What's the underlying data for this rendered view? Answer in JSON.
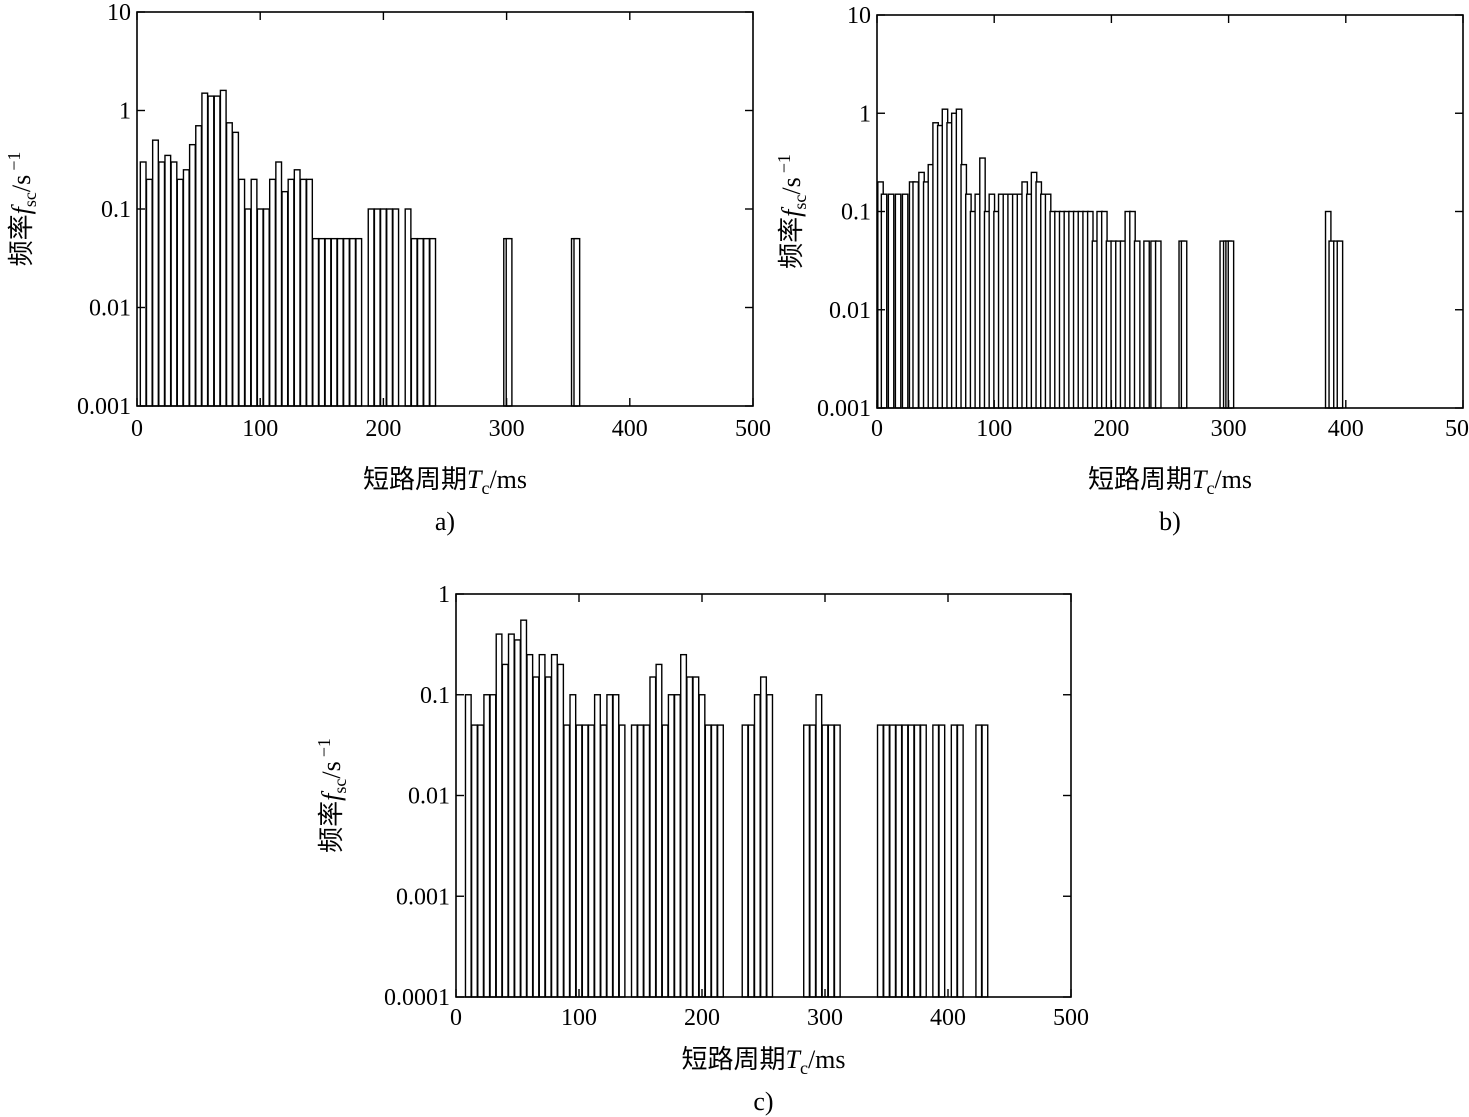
{
  "chart_data": [
    {
      "type": "bar",
      "panel_label": "a)",
      "xlabel": "短路周期",
      "xlabel_symbol": "T",
      "xlabel_sub": "c",
      "xlabel_unit": "/ms",
      "ylabel": "频率",
      "ylabel_symbol": "f",
      "ylabel_sub": "sc",
      "ylabel_unit": "/s",
      "ylabel_exp": "−1",
      "xlim": [
        0,
        500
      ],
      "ylim": [
        0.001,
        10
      ],
      "yscale": "log",
      "grid": false,
      "xticks": [
        "0",
        "100",
        "200",
        "300",
        "400",
        "500"
      ],
      "yticks": [
        "0.001",
        "0.01",
        "0.1",
        "1",
        "10"
      ],
      "x": [
        5,
        10,
        15,
        20,
        25,
        30,
        35,
        40,
        45,
        50,
        55,
        60,
        65,
        70,
        75,
        80,
        85,
        90,
        95,
        100,
        105,
        110,
        115,
        120,
        125,
        130,
        135,
        140,
        145,
        150,
        155,
        160,
        165,
        170,
        175,
        180,
        190,
        195,
        200,
        205,
        210,
        220,
        225,
        230,
        235,
        240,
        300,
        302,
        355,
        357
      ],
      "values": [
        0.3,
        0.2,
        0.5,
        0.3,
        0.35,
        0.3,
        0.2,
        0.25,
        0.45,
        0.7,
        1.5,
        1.4,
        1.4,
        1.6,
        0.75,
        0.6,
        0.2,
        0.1,
        0.2,
        0.1,
        0.1,
        0.2,
        0.3,
        0.15,
        0.2,
        0.25,
        0.2,
        0.2,
        0.05,
        0.05,
        0.05,
        0.05,
        0.05,
        0.05,
        0.05,
        0.05,
        0.1,
        0.1,
        0.1,
        0.1,
        0.1,
        0.1,
        0.05,
        0.05,
        0.05,
        0.05,
        0.05,
        0.05,
        0.05,
        0.05
      ]
    },
    {
      "type": "bar",
      "panel_label": "b)",
      "xlabel": "短路周期",
      "xlabel_symbol": "T",
      "xlabel_sub": "c",
      "xlabel_unit": "/ms",
      "ylabel": "频率",
      "ylabel_symbol": "f",
      "ylabel_sub": "sc",
      "ylabel_unit": "/s",
      "ylabel_exp": "−1",
      "xlim": [
        0,
        500
      ],
      "ylim": [
        0.001,
        10
      ],
      "yscale": "log",
      "grid": false,
      "xticks": [
        "0",
        "100",
        "200",
        "300",
        "400",
        "500"
      ],
      "yticks": [
        "0.001",
        "0.01",
        "0.1",
        "1",
        "10"
      ],
      "x": [
        3,
        6,
        12,
        18,
        24,
        30,
        33,
        38,
        42,
        46,
        50,
        54,
        58,
        62,
        66,
        70,
        74,
        78,
        82,
        86,
        90,
        94,
        98,
        102,
        106,
        110,
        114,
        118,
        122,
        126,
        130,
        134,
        138,
        142,
        146,
        150,
        154,
        158,
        162,
        166,
        170,
        174,
        178,
        182,
        186,
        190,
        194,
        198,
        202,
        206,
        210,
        214,
        218,
        222,
        230,
        236,
        240,
        260,
        262,
        295,
        298,
        300,
        302,
        385,
        388,
        392,
        395
      ],
      "values": [
        0.2,
        0.15,
        0.15,
        0.15,
        0.15,
        0.2,
        0.2,
        0.25,
        0.2,
        0.3,
        0.8,
        0.75,
        1.1,
        0.8,
        1.0,
        1.1,
        0.3,
        0.15,
        0.1,
        0.15,
        0.35,
        0.1,
        0.15,
        0.1,
        0.15,
        0.15,
        0.15,
        0.15,
        0.15,
        0.2,
        0.15,
        0.25,
        0.2,
        0.15,
        0.15,
        0.1,
        0.1,
        0.1,
        0.1,
        0.1,
        0.1,
        0.1,
        0.1,
        0.1,
        0.05,
        0.1,
        0.1,
        0.05,
        0.05,
        0.05,
        0.05,
        0.1,
        0.1,
        0.05,
        0.05,
        0.05,
        0.05,
        0.05,
        0.05,
        0.05,
        0.05,
        0.05,
        0.05,
        0.1,
        0.05,
        0.05,
        0.05
      ]
    },
    {
      "type": "bar",
      "panel_label": "c)",
      "xlabel": "短路周期",
      "xlabel_symbol": "T",
      "xlabel_sub": "c",
      "xlabel_unit": "/ms",
      "ylabel": "频率",
      "ylabel_symbol": "f",
      "ylabel_sub": "sc",
      "ylabel_unit": "/s",
      "ylabel_exp": "−1",
      "xlim": [
        0,
        500
      ],
      "ylim": [
        0.0001,
        1
      ],
      "yscale": "log",
      "grid": false,
      "xticks": [
        "0",
        "100",
        "200",
        "300",
        "400",
        "500"
      ],
      "yticks": [
        "0.0001",
        "0.001",
        "0.01",
        "0.1",
        "1"
      ],
      "x": [
        10,
        15,
        20,
        25,
        30,
        35,
        40,
        45,
        50,
        55,
        60,
        65,
        70,
        75,
        80,
        85,
        90,
        95,
        100,
        105,
        110,
        115,
        120,
        125,
        130,
        135,
        145,
        150,
        155,
        160,
        165,
        170,
        175,
        180,
        185,
        190,
        195,
        200,
        205,
        210,
        215,
        235,
        240,
        245,
        250,
        255,
        285,
        290,
        295,
        300,
        305,
        310,
        345,
        350,
        355,
        360,
        365,
        370,
        375,
        380,
        390,
        395,
        405,
        410,
        425,
        430
      ],
      "values": [
        0.1,
        0.05,
        0.05,
        0.1,
        0.1,
        0.4,
        0.2,
        0.4,
        0.35,
        0.55,
        0.25,
        0.15,
        0.25,
        0.15,
        0.25,
        0.2,
        0.05,
        0.1,
        0.05,
        0.05,
        0.05,
        0.1,
        0.05,
        0.1,
        0.1,
        0.05,
        0.05,
        0.05,
        0.05,
        0.15,
        0.2,
        0.05,
        0.1,
        0.1,
        0.25,
        0.15,
        0.15,
        0.1,
        0.05,
        0.05,
        0.05,
        0.05,
        0.05,
        0.1,
        0.15,
        0.1,
        0.05,
        0.05,
        0.1,
        0.05,
        0.05,
        0.05,
        0.05,
        0.05,
        0.05,
        0.05,
        0.05,
        0.05,
        0.05,
        0.05,
        0.05,
        0.05,
        0.05,
        0.05,
        0.05,
        0.05
      ]
    }
  ]
}
